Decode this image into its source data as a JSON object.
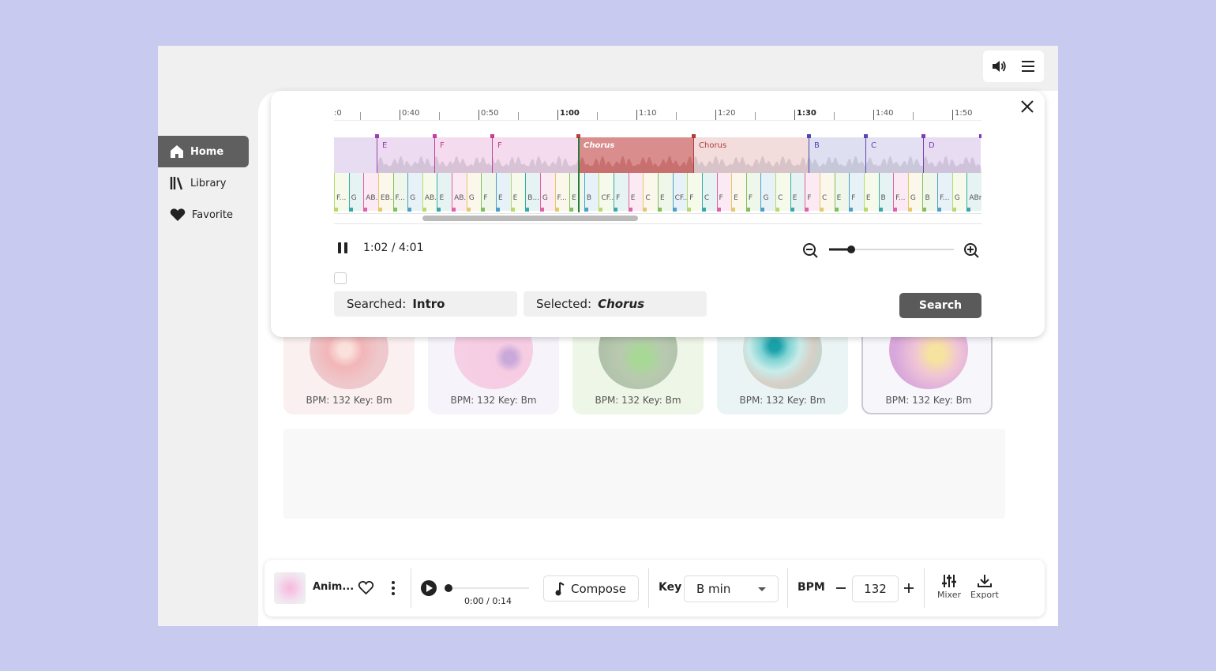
{
  "sidebar": {
    "items": [
      "Home",
      "Library",
      "Favorite"
    ]
  },
  "timeline": {
    "ticks": [
      ":0",
      "0:40",
      "0:50",
      "1:00",
      "1:10",
      "1:20",
      "1:30",
      "1:40",
      "1:50"
    ],
    "sections": [
      "E",
      "F",
      "F",
      "Chorus",
      "Chorus",
      "B",
      "C",
      "D"
    ],
    "chords": [
      "F...",
      "G",
      "AB...",
      "EB...",
      "F...",
      "G",
      "AB...",
      "E",
      "AB...",
      "G",
      "F",
      "E",
      "E",
      "B...",
      "G",
      "F...",
      "E",
      "B",
      "CF...",
      "F",
      "E",
      "C",
      "E",
      "CF...",
      "F",
      "C",
      "F",
      "E",
      "F",
      "G",
      "C",
      "E",
      "F",
      "C",
      "E",
      "F",
      "E",
      "B",
      "F...",
      "G",
      "B",
      "F...",
      "G",
      "ABm"
    ]
  },
  "player": {
    "time": "1:02 / 4:01"
  },
  "search": {
    "searched_label": "Searched:",
    "searched_value": "Intro",
    "selected_label": "Selected:",
    "selected_value": "Chorus",
    "button": "Search"
  },
  "cards": [
    "BPM: 132 Key: Bm",
    "BPM: 132 Key: Bm",
    "BPM: 132 Key: Bm",
    "BPM: 132 Key: Bm",
    "BPM: 132 Key: Bm"
  ],
  "bottom_bar": {
    "track": "Anim...",
    "time": "0:00 / 0:14",
    "compose": "Compose",
    "key_label": "Key",
    "key_value": "B min",
    "bpm_label": "BPM",
    "bpm_value": "132",
    "mixer": "Mixer",
    "export": "Export"
  }
}
